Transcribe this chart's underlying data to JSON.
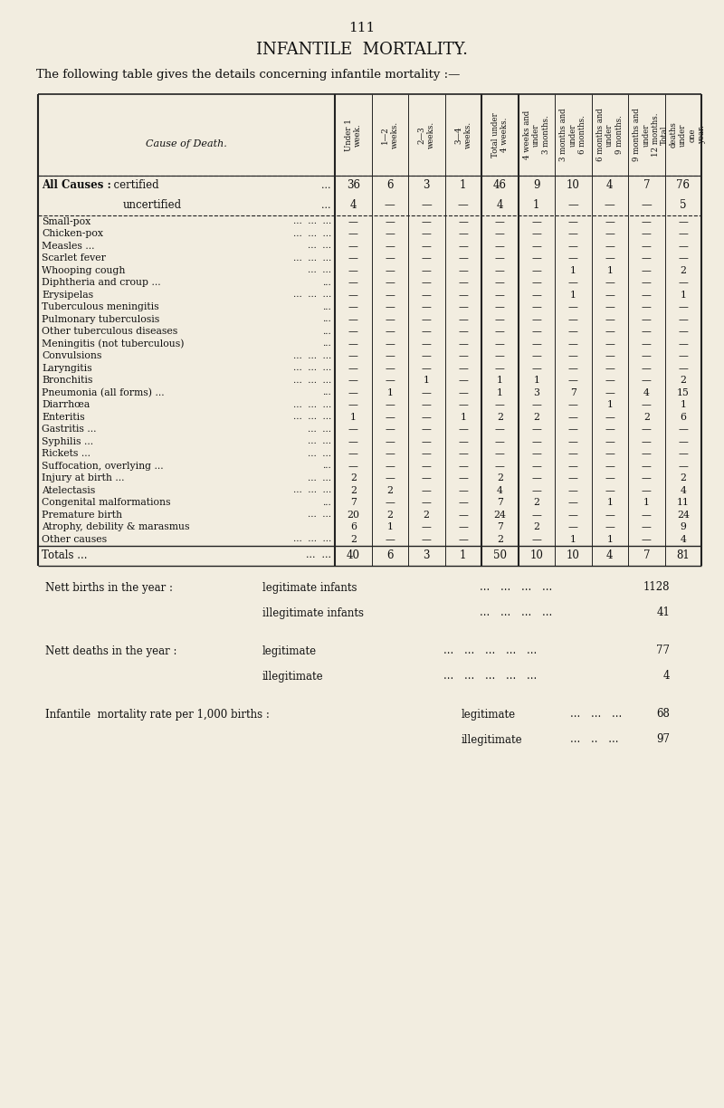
{
  "page_number": "111",
  "title": "INFANTILE  MORTALITY.",
  "subtitle": "The following table gives the details concerning infantile mortality :—",
  "col_headers": [
    "Under 1\nweek.",
    "1—2\nweeks.",
    "2—3\nweeks.",
    "3—4\nweeks.",
    "Total under\n4 weeks.",
    "4 weeks and\nunder\n3 months.",
    "3 months and\nunder\n6 months.",
    "6 months and\nunder\n9 months.",
    "9 months and\nunder\n12 months.",
    "Total\ndeaths\nunder\none\nyear."
  ],
  "cause_label": "Cause of Death.",
  "rows": [
    {
      "label": "All Causes :",
      "label2": "certified",
      "dots": "...",
      "bold": true,
      "values": [
        "36",
        "6",
        "3",
        "1",
        "46",
        "9",
        "10",
        "4",
        "7",
        "76"
      ]
    },
    {
      "label": "",
      "label2": "uncertified",
      "dots": "...",
      "bold": false,
      "values": [
        "4",
        "—",
        "—",
        "—",
        "4",
        "1",
        "—",
        "—",
        "—",
        "5"
      ]
    },
    {
      "label": "Small-pox",
      "dots": "...  ...  ...",
      "bold": false,
      "values": [
        "—",
        "—",
        "—",
        "—",
        "—",
        "—",
        "—",
        "—",
        "—",
        "—"
      ]
    },
    {
      "label": "Chicken-pox",
      "dots": "...  ...  ...",
      "bold": false,
      "values": [
        "—",
        "—",
        "—",
        "—",
        "—",
        "—",
        "—",
        "—",
        "—",
        "—"
      ]
    },
    {
      "label": "Measles ...",
      "dots": "...  ...",
      "bold": false,
      "values": [
        "—",
        "—",
        "—",
        "—",
        "—",
        "—",
        "—",
        "—",
        "—",
        "—"
      ]
    },
    {
      "label": "Scarlet fever",
      "dots": "...  ...  ...",
      "bold": false,
      "values": [
        "—",
        "—",
        "—",
        "—",
        "—",
        "—",
        "—",
        "—",
        "—",
        "—"
      ]
    },
    {
      "label": "Whooping cough",
      "dots": "...  ...",
      "bold": false,
      "values": [
        "—",
        "—",
        "—",
        "—",
        "—",
        "—",
        "1",
        "1",
        "—",
        "2"
      ]
    },
    {
      "label": "Diphtheria and croup ...",
      "dots": "...",
      "bold": false,
      "values": [
        "—",
        "—",
        "—",
        "—",
        "—",
        "—",
        "—",
        "—",
        "—",
        "—"
      ]
    },
    {
      "label": "Erysipelas",
      "dots": "...  ...  ...",
      "bold": false,
      "values": [
        "—",
        "—",
        "—",
        "—",
        "—",
        "—",
        "1",
        "—",
        "—",
        "1"
      ]
    },
    {
      "label": "Tuberculous meningitis",
      "dots": "...",
      "bold": false,
      "values": [
        "—",
        "—",
        "—",
        "—",
        "—",
        "—",
        "—",
        "—",
        "—",
        "—"
      ]
    },
    {
      "label": "Pulmonary tuberculosis",
      "dots": "...",
      "bold": false,
      "values": [
        "—",
        "—",
        "—",
        "—",
        "—",
        "—",
        "—",
        "—",
        "—",
        "—"
      ]
    },
    {
      "label": "Other tuberculous diseases",
      "dots": "...",
      "bold": false,
      "values": [
        "—",
        "—",
        "—",
        "—",
        "—",
        "—",
        "—",
        "—",
        "—",
        "—"
      ]
    },
    {
      "label": "Meningitis (not tuberculous)",
      "dots": "...",
      "bold": false,
      "values": [
        "—",
        "—",
        "—",
        "—",
        "—",
        "—",
        "—",
        "—",
        "—",
        "—"
      ]
    },
    {
      "label": "Convulsions",
      "dots": "...  ...  ...",
      "bold": false,
      "values": [
        "—",
        "—",
        "—",
        "—",
        "—",
        "—",
        "—",
        "—",
        "—",
        "—"
      ]
    },
    {
      "label": "Laryngitis",
      "dots": "...  ...  ...",
      "bold": false,
      "values": [
        "—",
        "—",
        "—",
        "—",
        "—",
        "—",
        "—",
        "—",
        "—",
        "—"
      ]
    },
    {
      "label": "Bronchitis",
      "dots": "...  ...  ...",
      "bold": false,
      "values": [
        "—",
        "—",
        "1",
        "—",
        "1",
        "1",
        "—",
        "—",
        "—",
        "2"
      ]
    },
    {
      "label": "Pneumonia (all forms) ...",
      "dots": "...",
      "bold": false,
      "values": [
        "—",
        "1",
        "—",
        "—",
        "1",
        "3",
        "7",
        "—",
        "4",
        "15"
      ]
    },
    {
      "label": "Diarrhœa",
      "dots": "...  ...  ...",
      "bold": false,
      "values": [
        "—",
        "—",
        "—",
        "—",
        "—",
        "—",
        "—",
        "1",
        "—",
        "1"
      ]
    },
    {
      "label": "Enteritis",
      "dots": "...  ...  ...",
      "bold": false,
      "values": [
        "1",
        "—",
        "—",
        "1",
        "2",
        "2",
        "—",
        "—",
        "2",
        "6"
      ]
    },
    {
      "label": "Gastritis ...",
      "dots": "...  ...",
      "bold": false,
      "values": [
        "—",
        "—",
        "—",
        "—",
        "—",
        "—",
        "—",
        "—",
        "—",
        "—"
      ]
    },
    {
      "label": "Syphilis ...",
      "dots": "...  ...",
      "bold": false,
      "values": [
        "—",
        "—",
        "—",
        "—",
        "—",
        "—",
        "—",
        "—",
        "—",
        "—"
      ]
    },
    {
      "label": "Rickets ...",
      "dots": "...  ...",
      "bold": false,
      "values": [
        "—",
        "—",
        "—",
        "—",
        "—",
        "—",
        "—",
        "—",
        "—",
        "—"
      ]
    },
    {
      "label": "Suffocation, overlying ...",
      "dots": "...",
      "bold": false,
      "values": [
        "—",
        "—",
        "—",
        "—",
        "—",
        "—",
        "—",
        "—",
        "—",
        "—"
      ]
    },
    {
      "label": "Injury at birth ...",
      "dots": "...  ...",
      "bold": false,
      "values": [
        "2",
        "—",
        "—",
        "—",
        "2",
        "—",
        "—",
        "—",
        "—",
        "2"
      ]
    },
    {
      "label": "Atelectasis",
      "dots": "...  ...  ...",
      "bold": false,
      "values": [
        "2",
        "2",
        "—",
        "—",
        "4",
        "—",
        "—",
        "—",
        "—",
        "4"
      ]
    },
    {
      "label": "Congenital malformations",
      "dots": "...",
      "bold": false,
      "values": [
        "7",
        "—",
        "—",
        "—",
        "7",
        "2",
        "—",
        "1",
        "1",
        "11"
      ]
    },
    {
      "label": "Premature birth",
      "dots": "...  ...",
      "bold": false,
      "values": [
        "20",
        "2",
        "2",
        "—",
        "24",
        "—",
        "—",
        "—",
        "—",
        "24"
      ]
    },
    {
      "label": "Atrophy, debility & marasmus",
      "dots": "",
      "bold": false,
      "values": [
        "6",
        "1",
        "—",
        "—",
        "7",
        "2",
        "—",
        "—",
        "—",
        "9"
      ]
    },
    {
      "label": "Other causes",
      "dots": "...  ...  ...",
      "bold": false,
      "values": [
        "2",
        "—",
        "—",
        "—",
        "2",
        "—",
        "1",
        "1",
        "—",
        "4"
      ]
    }
  ],
  "totals": {
    "label": "Totals ...",
    "dots": "...  ...",
    "values": [
      "40",
      "6",
      "3",
      "1",
      "50",
      "10",
      "10",
      "4",
      "7",
      "81"
    ]
  },
  "bg_color": "#f2ede0",
  "text_color": "#111111",
  "line_color": "#222222"
}
